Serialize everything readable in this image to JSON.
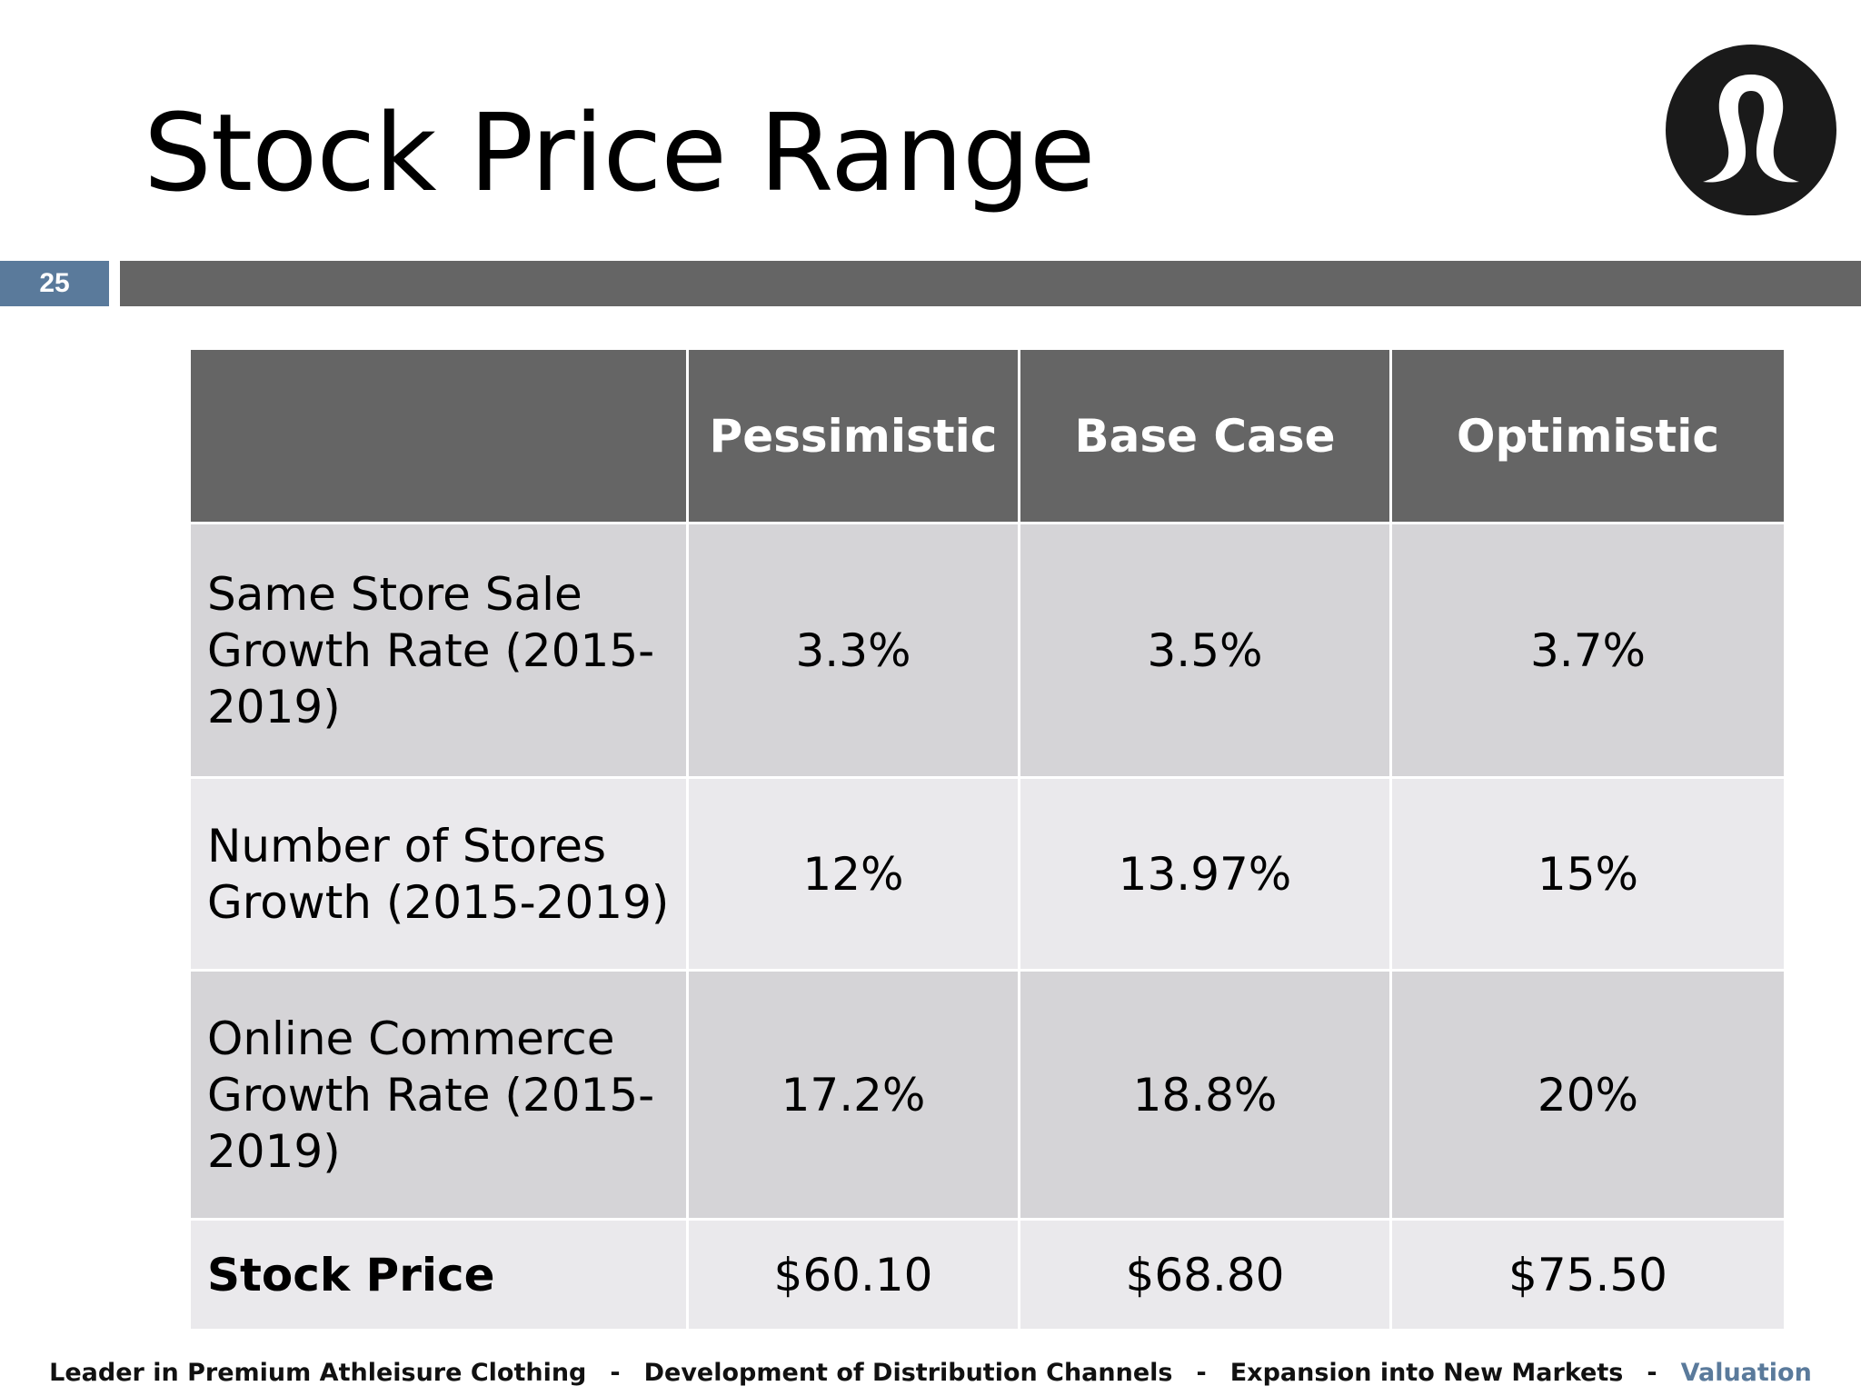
{
  "slide": {
    "title": "Stock Price Range",
    "number": "25",
    "logo_icon": "lululemon-logo-icon"
  },
  "table": {
    "headers": [
      "",
      "Pessimistic",
      "Base Case",
      "Optimistic"
    ],
    "rows": [
      {
        "label": "Same Store Sale Growth Rate (2015-2019)",
        "values": [
          "3.3%",
          "3.5%",
          "3.7%"
        ]
      },
      {
        "label": "Number of Stores Growth (2015-2019)",
        "values": [
          "12%",
          "13.97%",
          "15%"
        ]
      },
      {
        "label": "Online Commerce Growth Rate (2015-2019)",
        "values": [
          "17.2%",
          "18.8%",
          "20%"
        ]
      },
      {
        "label": "Stock Price",
        "values": [
          "$60.10",
          "$68.80",
          "$75.50"
        ]
      }
    ]
  },
  "footer": {
    "items": [
      "Leader in Premium Athleisure Clothing",
      "Development of Distribution Channels",
      "Expansion into New Markets",
      "Valuation"
    ],
    "separator": "-",
    "active_index": 3
  },
  "colors": {
    "accent": "#5a7a9b",
    "bar": "#656565",
    "row_dark": "#d5d4d7",
    "row_light": "#eae9ec"
  }
}
